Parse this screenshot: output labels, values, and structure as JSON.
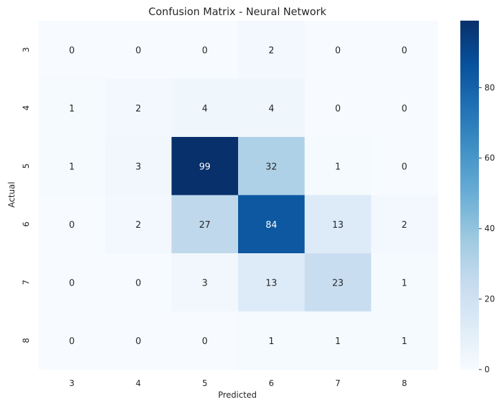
{
  "chart_data": {
    "type": "heatmap",
    "title": "Confusion Matrix - Neural Network",
    "xlabel": "Predicted",
    "ylabel": "Actual",
    "x_categories": [
      "3",
      "4",
      "5",
      "6",
      "7",
      "8"
    ],
    "y_categories": [
      "3",
      "4",
      "5",
      "6",
      "7",
      "8"
    ],
    "values": [
      [
        0,
        0,
        0,
        2,
        0,
        0
      ],
      [
        1,
        2,
        4,
        4,
        0,
        0
      ],
      [
        1,
        3,
        99,
        32,
        1,
        0
      ],
      [
        0,
        2,
        27,
        84,
        13,
        2
      ],
      [
        0,
        0,
        3,
        13,
        23,
        1
      ],
      [
        0,
        0,
        0,
        1,
        1,
        1
      ]
    ],
    "colormap": "Blues",
    "colorbar": {
      "min": 0,
      "max": 99,
      "ticks": [
        "0",
        "20",
        "40",
        "60",
        "80"
      ]
    },
    "annotations": true,
    "grid": false
  }
}
